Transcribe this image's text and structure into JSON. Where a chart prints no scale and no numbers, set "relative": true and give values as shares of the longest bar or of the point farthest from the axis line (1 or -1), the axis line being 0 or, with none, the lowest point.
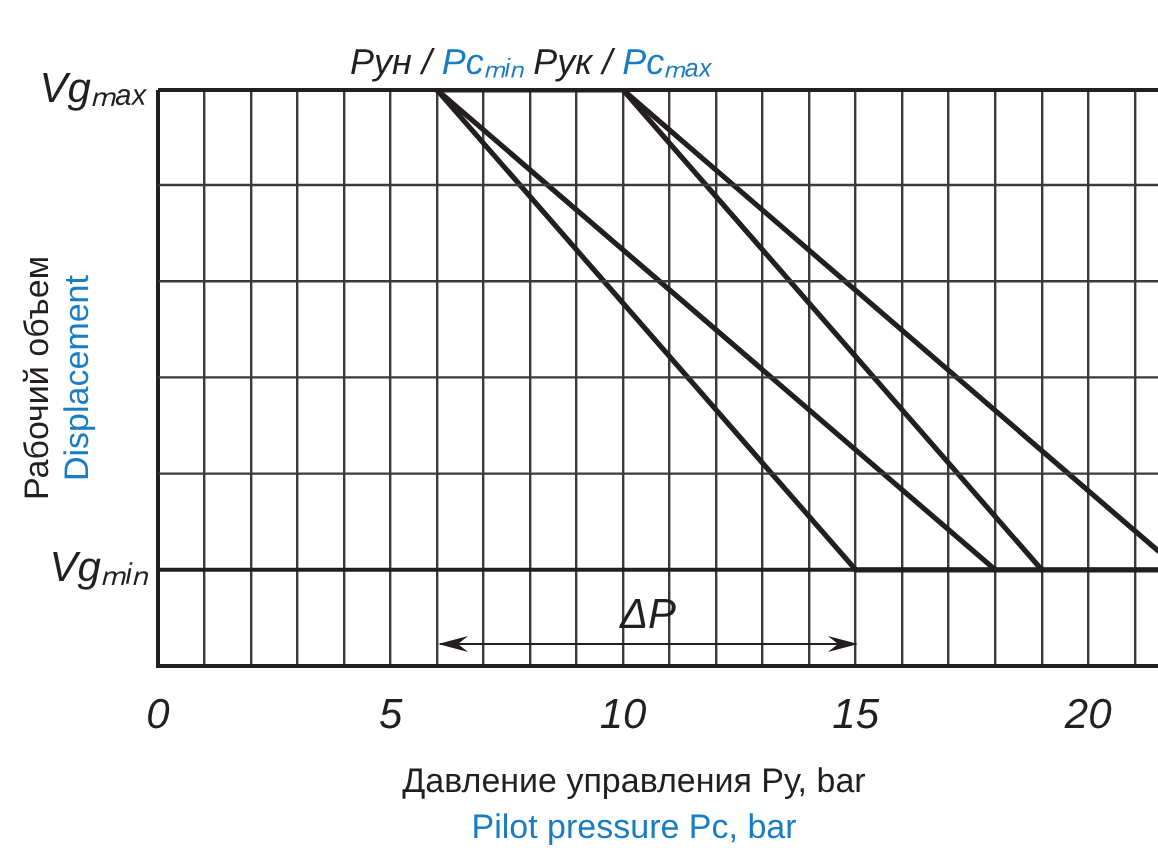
{
  "chart_data": {
    "type": "line",
    "xlabel": "Давление управления Pу, bar\nPilot pressure Pc, bar",
    "ylabel": "Рабочий объем\nDisplacement",
    "relative": true,
    "series": [
      {
        "color": "#231f20",
        "x": [
          6,
          15,
          21.5
        ],
        "values": [
          1,
          0.167,
          0.167
        ]
      },
      {
        "color": "#231f20",
        "x": [
          6,
          18
        ],
        "values": [
          1,
          0.167
        ]
      },
      {
        "color": "#231f20",
        "x": [
          6,
          10,
          19
        ],
        "values": [
          1,
          1,
          0.167
        ]
      },
      {
        "color": "#231f20",
        "x": [
          10,
          21.5
        ],
        "values": [
          1,
          0.2
        ]
      }
    ],
    "xlim": [
      0,
      21.5
    ],
    "xticks": [
      0,
      {
        "value": 1,
        "label": null
      },
      {
        "value": 2,
        "label": null
      },
      {
        "value": 3,
        "label": null
      },
      {
        "value": 4,
        "label": null
      },
      5,
      {
        "value": 6,
        "label": null
      },
      {
        "value": 7,
        "label": null
      },
      {
        "value": 8,
        "label": null
      },
      {
        "value": 9,
        "label": null
      },
      10,
      {
        "value": 11,
        "label": null
      },
      {
        "value": 12,
        "label": null
      },
      {
        "value": 13,
        "label": null
      },
      {
        "value": 14,
        "label": null
      },
      15,
      {
        "value": 16,
        "label": null
      },
      {
        "value": 17,
        "label": null
      },
      {
        "value": 18,
        "label": null
      },
      {
        "value": 19,
        "label": null
      },
      20,
      {
        "value": 21,
        "label": null
      }
    ],
    "ref_lines": [
      {
        "axis": "y",
        "value": 1,
        "label": "Vgₘₐₓ"
      },
      {
        "axis": "y",
        "value": 0.167,
        "label": "Vgₘᵢₙ"
      }
    ],
    "annotations": [
      {
        "text": "Pун / Pcₘᵢₙ",
        "x": 6,
        "y": 1
      },
      {
        "text": "Pук / Pcₘₐₓ",
        "x": 10,
        "y": 1
      },
      "ΔP"
    ],
    "grid": true,
    "legend": false,
    "marker": "none",
    "line_style": "solid"
  }
}
